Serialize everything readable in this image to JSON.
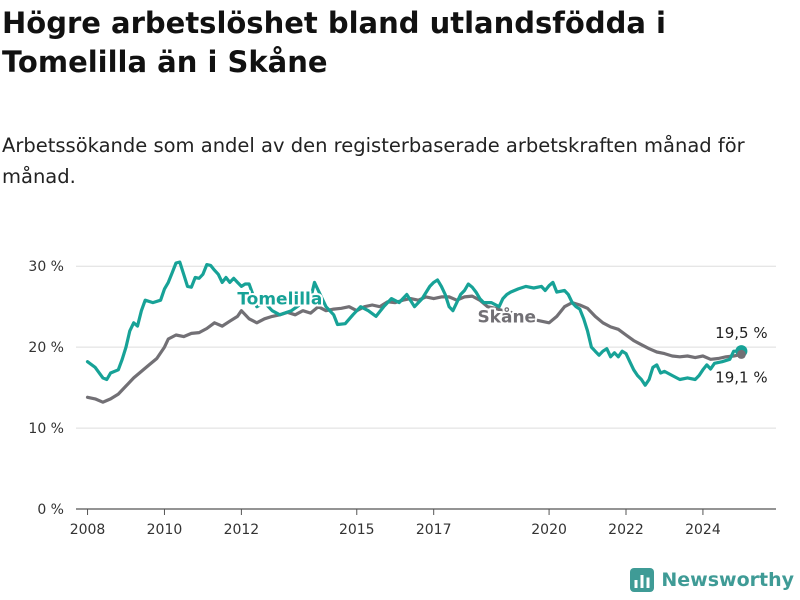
{
  "header": {
    "title": "Högre arbetslöshet bland utlandsfödda i Tomelilla än i Skåne",
    "subtitle": "Arbetssökande som andel av den registerbaserade arbetskraften månad för månad."
  },
  "branding": {
    "name": "Newsworthy"
  },
  "colors": {
    "tomelilla": "#17a297",
    "skane": "#727075",
    "brand": "#3f9b96"
  },
  "chart_data": {
    "type": "line",
    "title": "Högre arbetslöshet bland utlandsfödda i Tomelilla än i Skåne",
    "subtitle": "Arbetssökande som andel av den registerbaserade arbetskraften månad för månad.",
    "xlabel": "",
    "ylabel": "",
    "x_ticks": [
      "2008",
      "2010",
      "2012",
      "2015",
      "2017",
      "2020",
      "2022",
      "2024"
    ],
    "y_ticks": [
      "0 %",
      "10 %",
      "20 %",
      "30 %"
    ],
    "ylim": [
      0,
      32
    ],
    "xlim": [
      2007.7,
      2025.9
    ],
    "grid": true,
    "legend": "inline labels",
    "series": [
      {
        "name": "Tomelilla",
        "color": "#17a297",
        "end_label": "19,5 %",
        "points": [
          [
            2008.0,
            18.2
          ],
          [
            2008.2,
            17.5
          ],
          [
            2008.4,
            16.2
          ],
          [
            2008.5,
            16.0
          ],
          [
            2008.6,
            16.8
          ],
          [
            2008.8,
            17.2
          ],
          [
            2008.9,
            18.5
          ],
          [
            2009.0,
            20.0
          ],
          [
            2009.1,
            22.0
          ],
          [
            2009.2,
            23.0
          ],
          [
            2009.3,
            22.6
          ],
          [
            2009.4,
            24.5
          ],
          [
            2009.5,
            25.8
          ],
          [
            2009.7,
            25.5
          ],
          [
            2009.9,
            25.8
          ],
          [
            2010.0,
            27.2
          ],
          [
            2010.1,
            28.0
          ],
          [
            2010.2,
            29.2
          ],
          [
            2010.3,
            30.4
          ],
          [
            2010.4,
            30.5
          ],
          [
            2010.5,
            29.0
          ],
          [
            2010.6,
            27.5
          ],
          [
            2010.7,
            27.4
          ],
          [
            2010.8,
            28.6
          ],
          [
            2010.9,
            28.5
          ],
          [
            2011.0,
            29.0
          ],
          [
            2011.1,
            30.2
          ],
          [
            2011.2,
            30.1
          ],
          [
            2011.3,
            29.5
          ],
          [
            2011.4,
            29.0
          ],
          [
            2011.5,
            28.0
          ],
          [
            2011.6,
            28.6
          ],
          [
            2011.7,
            28.0
          ],
          [
            2011.8,
            28.5
          ],
          [
            2011.9,
            28.0
          ],
          [
            2012.0,
            27.5
          ],
          [
            2012.1,
            27.8
          ],
          [
            2012.2,
            27.8
          ],
          [
            2012.3,
            26.5
          ],
          [
            2012.4,
            25.0
          ],
          [
            2012.6,
            25.5
          ],
          [
            2012.8,
            24.5
          ],
          [
            2013.0,
            24.0
          ],
          [
            2013.3,
            24.5
          ],
          [
            2013.6,
            25.5
          ],
          [
            2013.8,
            26.0
          ],
          [
            2013.9,
            28.0
          ],
          [
            2014.0,
            27.0
          ],
          [
            2014.2,
            25.0
          ],
          [
            2014.4,
            24.0
          ],
          [
            2014.5,
            22.8
          ],
          [
            2014.7,
            22.9
          ],
          [
            2014.9,
            24.0
          ],
          [
            2015.1,
            25.0
          ],
          [
            2015.3,
            24.5
          ],
          [
            2015.5,
            23.8
          ],
          [
            2015.7,
            25.0
          ],
          [
            2015.9,
            26.0
          ],
          [
            2016.1,
            25.5
          ],
          [
            2016.3,
            26.5
          ],
          [
            2016.5,
            25.0
          ],
          [
            2016.7,
            26.0
          ],
          [
            2016.9,
            27.5
          ],
          [
            2017.0,
            28.0
          ],
          [
            2017.1,
            28.3
          ],
          [
            2017.2,
            27.5
          ],
          [
            2017.3,
            26.5
          ],
          [
            2017.4,
            25.0
          ],
          [
            2017.5,
            24.5
          ],
          [
            2017.6,
            25.5
          ],
          [
            2017.7,
            26.5
          ],
          [
            2017.8,
            27.0
          ],
          [
            2017.9,
            27.8
          ],
          [
            2018.0,
            27.4
          ],
          [
            2018.1,
            26.8
          ],
          [
            2018.2,
            26.0
          ],
          [
            2018.3,
            25.5
          ],
          [
            2018.5,
            25.5
          ],
          [
            2018.7,
            25.0
          ],
          [
            2018.8,
            26.0
          ],
          [
            2018.9,
            26.5
          ],
          [
            2019.0,
            26.8
          ],
          [
            2019.2,
            27.2
          ],
          [
            2019.4,
            27.5
          ],
          [
            2019.6,
            27.3
          ],
          [
            2019.8,
            27.5
          ],
          [
            2019.9,
            27.0
          ],
          [
            2020.0,
            27.6
          ],
          [
            2020.1,
            28.0
          ],
          [
            2020.2,
            26.8
          ],
          [
            2020.4,
            27.0
          ],
          [
            2020.5,
            26.5
          ],
          [
            2020.6,
            25.5
          ],
          [
            2020.7,
            25.0
          ],
          [
            2020.8,
            24.7
          ],
          [
            2020.9,
            23.5
          ],
          [
            2021.0,
            22.0
          ],
          [
            2021.1,
            20.0
          ],
          [
            2021.2,
            19.5
          ],
          [
            2021.3,
            19.0
          ],
          [
            2021.4,
            19.5
          ],
          [
            2021.5,
            19.8
          ],
          [
            2021.6,
            18.8
          ],
          [
            2021.7,
            19.3
          ],
          [
            2021.8,
            18.8
          ],
          [
            2021.9,
            19.5
          ],
          [
            2022.0,
            19.2
          ],
          [
            2022.1,
            18.2
          ],
          [
            2022.2,
            17.2
          ],
          [
            2022.3,
            16.5
          ],
          [
            2022.4,
            16.0
          ],
          [
            2022.5,
            15.3
          ],
          [
            2022.6,
            16.0
          ],
          [
            2022.7,
            17.5
          ],
          [
            2022.8,
            17.8
          ],
          [
            2022.9,
            16.8
          ],
          [
            2023.0,
            17.0
          ],
          [
            2023.2,
            16.5
          ],
          [
            2023.4,
            16.0
          ],
          [
            2023.6,
            16.2
          ],
          [
            2023.8,
            16.0
          ],
          [
            2023.9,
            16.5
          ],
          [
            2024.0,
            17.2
          ],
          [
            2024.1,
            17.8
          ],
          [
            2024.2,
            17.3
          ],
          [
            2024.3,
            18.0
          ],
          [
            2024.5,
            18.2
          ],
          [
            2024.7,
            18.5
          ],
          [
            2024.8,
            19.5
          ],
          [
            2025.0,
            19.5
          ]
        ]
      },
      {
        "name": "Skåne",
        "color": "#727075",
        "end_label": "19,1 %",
        "points": [
          [
            2008.0,
            13.8
          ],
          [
            2008.2,
            13.6
          ],
          [
            2008.4,
            13.2
          ],
          [
            2008.5,
            13.4
          ],
          [
            2008.6,
            13.6
          ],
          [
            2008.8,
            14.2
          ],
          [
            2009.0,
            15.2
          ],
          [
            2009.2,
            16.2
          ],
          [
            2009.4,
            17.0
          ],
          [
            2009.6,
            17.8
          ],
          [
            2009.8,
            18.6
          ],
          [
            2010.0,
            20.0
          ],
          [
            2010.1,
            21.0
          ],
          [
            2010.3,
            21.5
          ],
          [
            2010.5,
            21.3
          ],
          [
            2010.7,
            21.7
          ],
          [
            2010.9,
            21.8
          ],
          [
            2011.1,
            22.3
          ],
          [
            2011.3,
            23.0
          ],
          [
            2011.5,
            22.6
          ],
          [
            2011.7,
            23.2
          ],
          [
            2011.9,
            23.8
          ],
          [
            2012.0,
            24.5
          ],
          [
            2012.2,
            23.5
          ],
          [
            2012.4,
            23.0
          ],
          [
            2012.6,
            23.5
          ],
          [
            2012.8,
            23.8
          ],
          [
            2013.0,
            24.0
          ],
          [
            2013.2,
            24.3
          ],
          [
            2013.4,
            24.0
          ],
          [
            2013.6,
            24.5
          ],
          [
            2013.8,
            24.2
          ],
          [
            2014.0,
            25.0
          ],
          [
            2014.2,
            24.5
          ],
          [
            2014.4,
            24.7
          ],
          [
            2014.6,
            24.8
          ],
          [
            2014.8,
            25.0
          ],
          [
            2015.0,
            24.5
          ],
          [
            2015.2,
            25.0
          ],
          [
            2015.4,
            25.2
          ],
          [
            2015.6,
            25.0
          ],
          [
            2015.8,
            25.6
          ],
          [
            2016.0,
            25.5
          ],
          [
            2016.2,
            25.8
          ],
          [
            2016.4,
            26.0
          ],
          [
            2016.6,
            25.8
          ],
          [
            2016.8,
            26.2
          ],
          [
            2017.0,
            26.0
          ],
          [
            2017.2,
            26.2
          ],
          [
            2017.4,
            26.2
          ],
          [
            2017.6,
            25.8
          ],
          [
            2017.8,
            26.2
          ],
          [
            2018.0,
            26.3
          ],
          [
            2018.2,
            25.8
          ],
          [
            2018.4,
            25.0
          ],
          [
            2018.6,
            24.8
          ],
          [
            2018.8,
            24.5
          ],
          [
            2019.0,
            24.3
          ],
          [
            2019.2,
            24.0
          ],
          [
            2019.4,
            23.7
          ],
          [
            2019.6,
            23.4
          ],
          [
            2019.8,
            23.2
          ],
          [
            2020.0,
            23.0
          ],
          [
            2020.2,
            23.8
          ],
          [
            2020.4,
            25.0
          ],
          [
            2020.6,
            25.5
          ],
          [
            2020.8,
            25.2
          ],
          [
            2021.0,
            24.8
          ],
          [
            2021.2,
            23.8
          ],
          [
            2021.4,
            23.0
          ],
          [
            2021.6,
            22.5
          ],
          [
            2021.8,
            22.2
          ],
          [
            2022.0,
            21.5
          ],
          [
            2022.2,
            20.8
          ],
          [
            2022.4,
            20.3
          ],
          [
            2022.6,
            19.8
          ],
          [
            2022.8,
            19.4
          ],
          [
            2023.0,
            19.2
          ],
          [
            2023.2,
            18.9
          ],
          [
            2023.4,
            18.8
          ],
          [
            2023.6,
            18.9
          ],
          [
            2023.8,
            18.7
          ],
          [
            2024.0,
            18.9
          ],
          [
            2024.2,
            18.5
          ],
          [
            2024.4,
            18.6
          ],
          [
            2024.6,
            18.8
          ],
          [
            2024.8,
            18.9
          ],
          [
            2025.0,
            19.1
          ]
        ]
      }
    ]
  }
}
